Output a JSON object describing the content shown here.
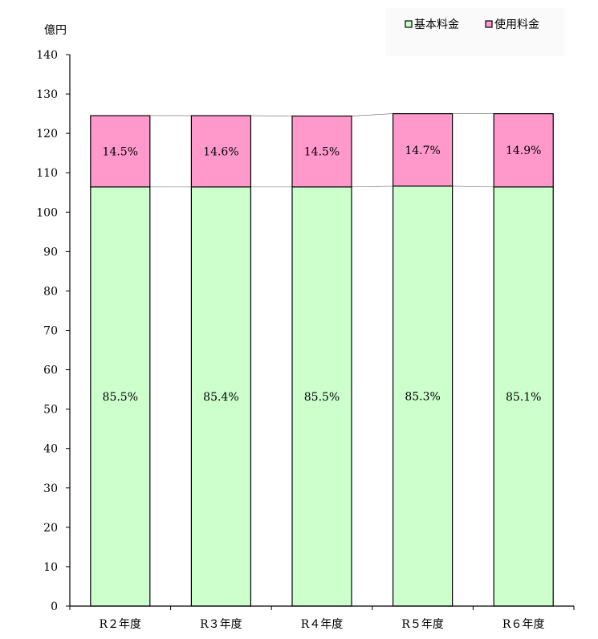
{
  "chart_data": {
    "type": "bar",
    "stacked": true,
    "y_unit": "億円",
    "ylim": [
      0,
      140
    ],
    "y_ticks": [
      0,
      10,
      20,
      30,
      40,
      50,
      60,
      70,
      80,
      90,
      100,
      110,
      120,
      130,
      140
    ],
    "categories": [
      "R２年度",
      "R３年度",
      "R４年度",
      "R５年度",
      "R６年度"
    ],
    "series": [
      {
        "name": "基本料金",
        "color": "#ccffcc",
        "values": [
          106.4,
          106.4,
          106.4,
          106.6,
          106.4
        ],
        "labels": [
          "85.5%",
          "85.4%",
          "85.5%",
          "85.3%",
          "85.1%"
        ]
      },
      {
        "name": "使用料金",
        "color": "#ff99cc",
        "values": [
          18.1,
          18.1,
          18.0,
          18.4,
          18.6
        ],
        "labels": [
          "14.5%",
          "14.6%",
          "14.5%",
          "14.7%",
          "14.9%"
        ]
      }
    ],
    "legend_position": "top-right",
    "grid": false
  }
}
